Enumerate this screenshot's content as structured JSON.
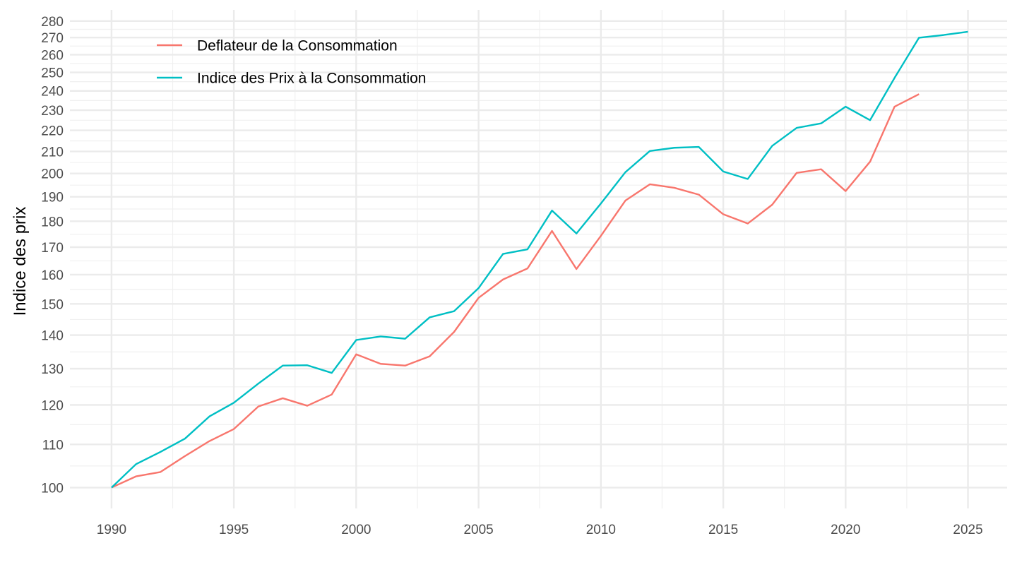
{
  "chart_data": {
    "type": "line",
    "title": "",
    "xlabel": "",
    "ylabel": "Indice des prix",
    "y_scale": "log",
    "xlim": [
      1988.3,
      2026.6
    ],
    "ylim": [
      95.5,
      287
    ],
    "x_ticks": [
      1990,
      1995,
      2000,
      2005,
      2010,
      2015,
      2020,
      2025
    ],
    "y_ticks": [
      100,
      110,
      120,
      130,
      140,
      150,
      160,
      170,
      180,
      190,
      200,
      210,
      220,
      230,
      240,
      250,
      260,
      270,
      280
    ],
    "grid": true,
    "legend_position": "top-left",
    "series": [
      {
        "name": "Deflateur de la Consommation",
        "color": "#F8766D",
        "x": [
          1990,
          1991,
          1992,
          1993,
          1994,
          1995,
          1996,
          1997,
          1998,
          1999,
          2000,
          2001,
          2002,
          2003,
          2004,
          2005,
          2006,
          2007,
          2008,
          2009,
          2010,
          2011,
          2012,
          2013,
          2014,
          2015,
          2016,
          2017,
          2018,
          2019,
          2020,
          2021,
          2022,
          2023
        ],
        "values": [
          100,
          102.5,
          103.5,
          107.2,
          110.8,
          113.8,
          119.6,
          121.8,
          119.8,
          122.8,
          134.2,
          131.4,
          130.9,
          133.6,
          141.0,
          152.0,
          158.3,
          162.2,
          176.2,
          162.0,
          174.3,
          188.4,
          195.3,
          193.8,
          190.9,
          182.8,
          179.1,
          186.7,
          200.3,
          201.9,
          192.4,
          205.3,
          231.8,
          238.3
        ]
      },
      {
        "name": "Indice des Prix à la Consommation",
        "color": "#00BFC4",
        "x": [
          1990,
          1991,
          1992,
          1993,
          1994,
          1995,
          1996,
          1997,
          1998,
          1999,
          2000,
          2001,
          2002,
          2003,
          2004,
          2005,
          2006,
          2007,
          2008,
          2009,
          2010,
          2011,
          2012,
          2013,
          2014,
          2015,
          2016,
          2017,
          2018,
          2019,
          2020,
          2021,
          2022,
          2023,
          2024,
          2025
        ],
        "values": [
          100,
          105.3,
          108.2,
          111.4,
          117.0,
          120.6,
          125.8,
          130.9,
          131.0,
          128.8,
          138.5,
          139.6,
          138.9,
          145.6,
          147.6,
          155.3,
          167.5,
          169.2,
          184.3,
          175.2,
          187.2,
          200.6,
          210.2,
          211.7,
          212.1,
          200.9,
          197.6,
          212.6,
          221.2,
          223.4,
          231.8,
          225.0,
          247.0,
          269.9,
          271.5,
          273.5
        ]
      }
    ]
  }
}
